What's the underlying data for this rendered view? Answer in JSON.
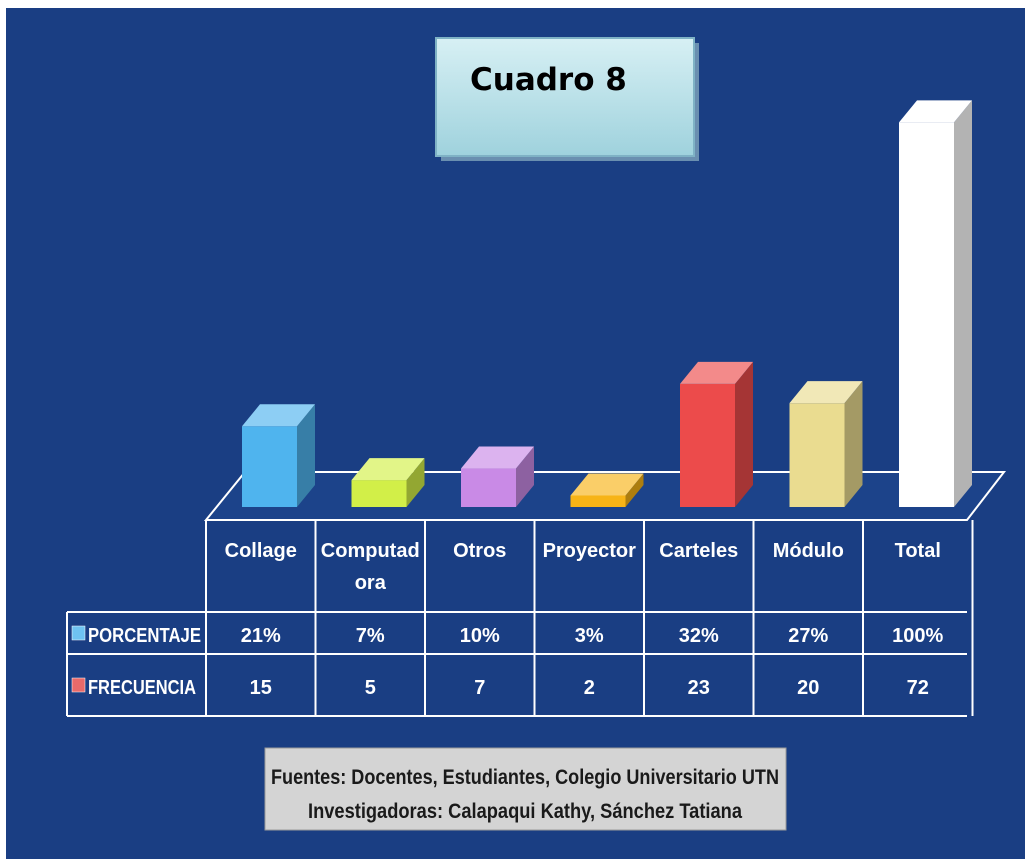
{
  "chart_data": {
    "type": "bar",
    "title": "Cuadro 8",
    "categories": [
      "Collage",
      "Computadora",
      "Otros",
      "Proyector",
      "Carteles",
      "Módulo",
      "Total"
    ],
    "category_display": [
      [
        "Collage"
      ],
      [
        "Computad",
        "ora"
      ],
      [
        "Otros"
      ],
      [
        "Proyector"
      ],
      [
        "Carteles"
      ],
      [
        "Módulo"
      ],
      [
        "Total"
      ]
    ],
    "series": [
      {
        "name": "PORCENTAJE",
        "values": [
          21,
          7,
          10,
          3,
          32,
          27,
          100
        ],
        "labels": [
          "21%",
          "7%",
          "10%",
          "3%",
          "32%",
          "27%",
          "100%"
        ]
      },
      {
        "name": "FRECUENCIA",
        "values": [
          15,
          5,
          7,
          2,
          23,
          20,
          72
        ],
        "labels": [
          "15",
          "5",
          "7",
          "2",
          "23",
          "20",
          "72"
        ]
      }
    ],
    "ylim": [
      0,
      104
    ],
    "bar_colors": [
      "#4fb4ee",
      "#d2ef48",
      "#c98ae6",
      "#f7b416",
      "#ec4b4b",
      "#eadc90",
      "#ffffff"
    ],
    "legend_colors": {
      "PORCENTAJE": "#6fc3f1",
      "FRECUENCIA": "#e86a6a"
    },
    "grid": false,
    "legend": "data-table"
  },
  "footer": {
    "source": "Fuentes: Docentes, Estudiantes, Colegio Universitario UTN",
    "authors": "Investigadoras: Calapaqui Kathy, Sánchez Tatiana"
  },
  "colors": {
    "background": "#1a3e83",
    "title_box": "#b8dfe6",
    "footer_box": "#d4d4d4"
  }
}
